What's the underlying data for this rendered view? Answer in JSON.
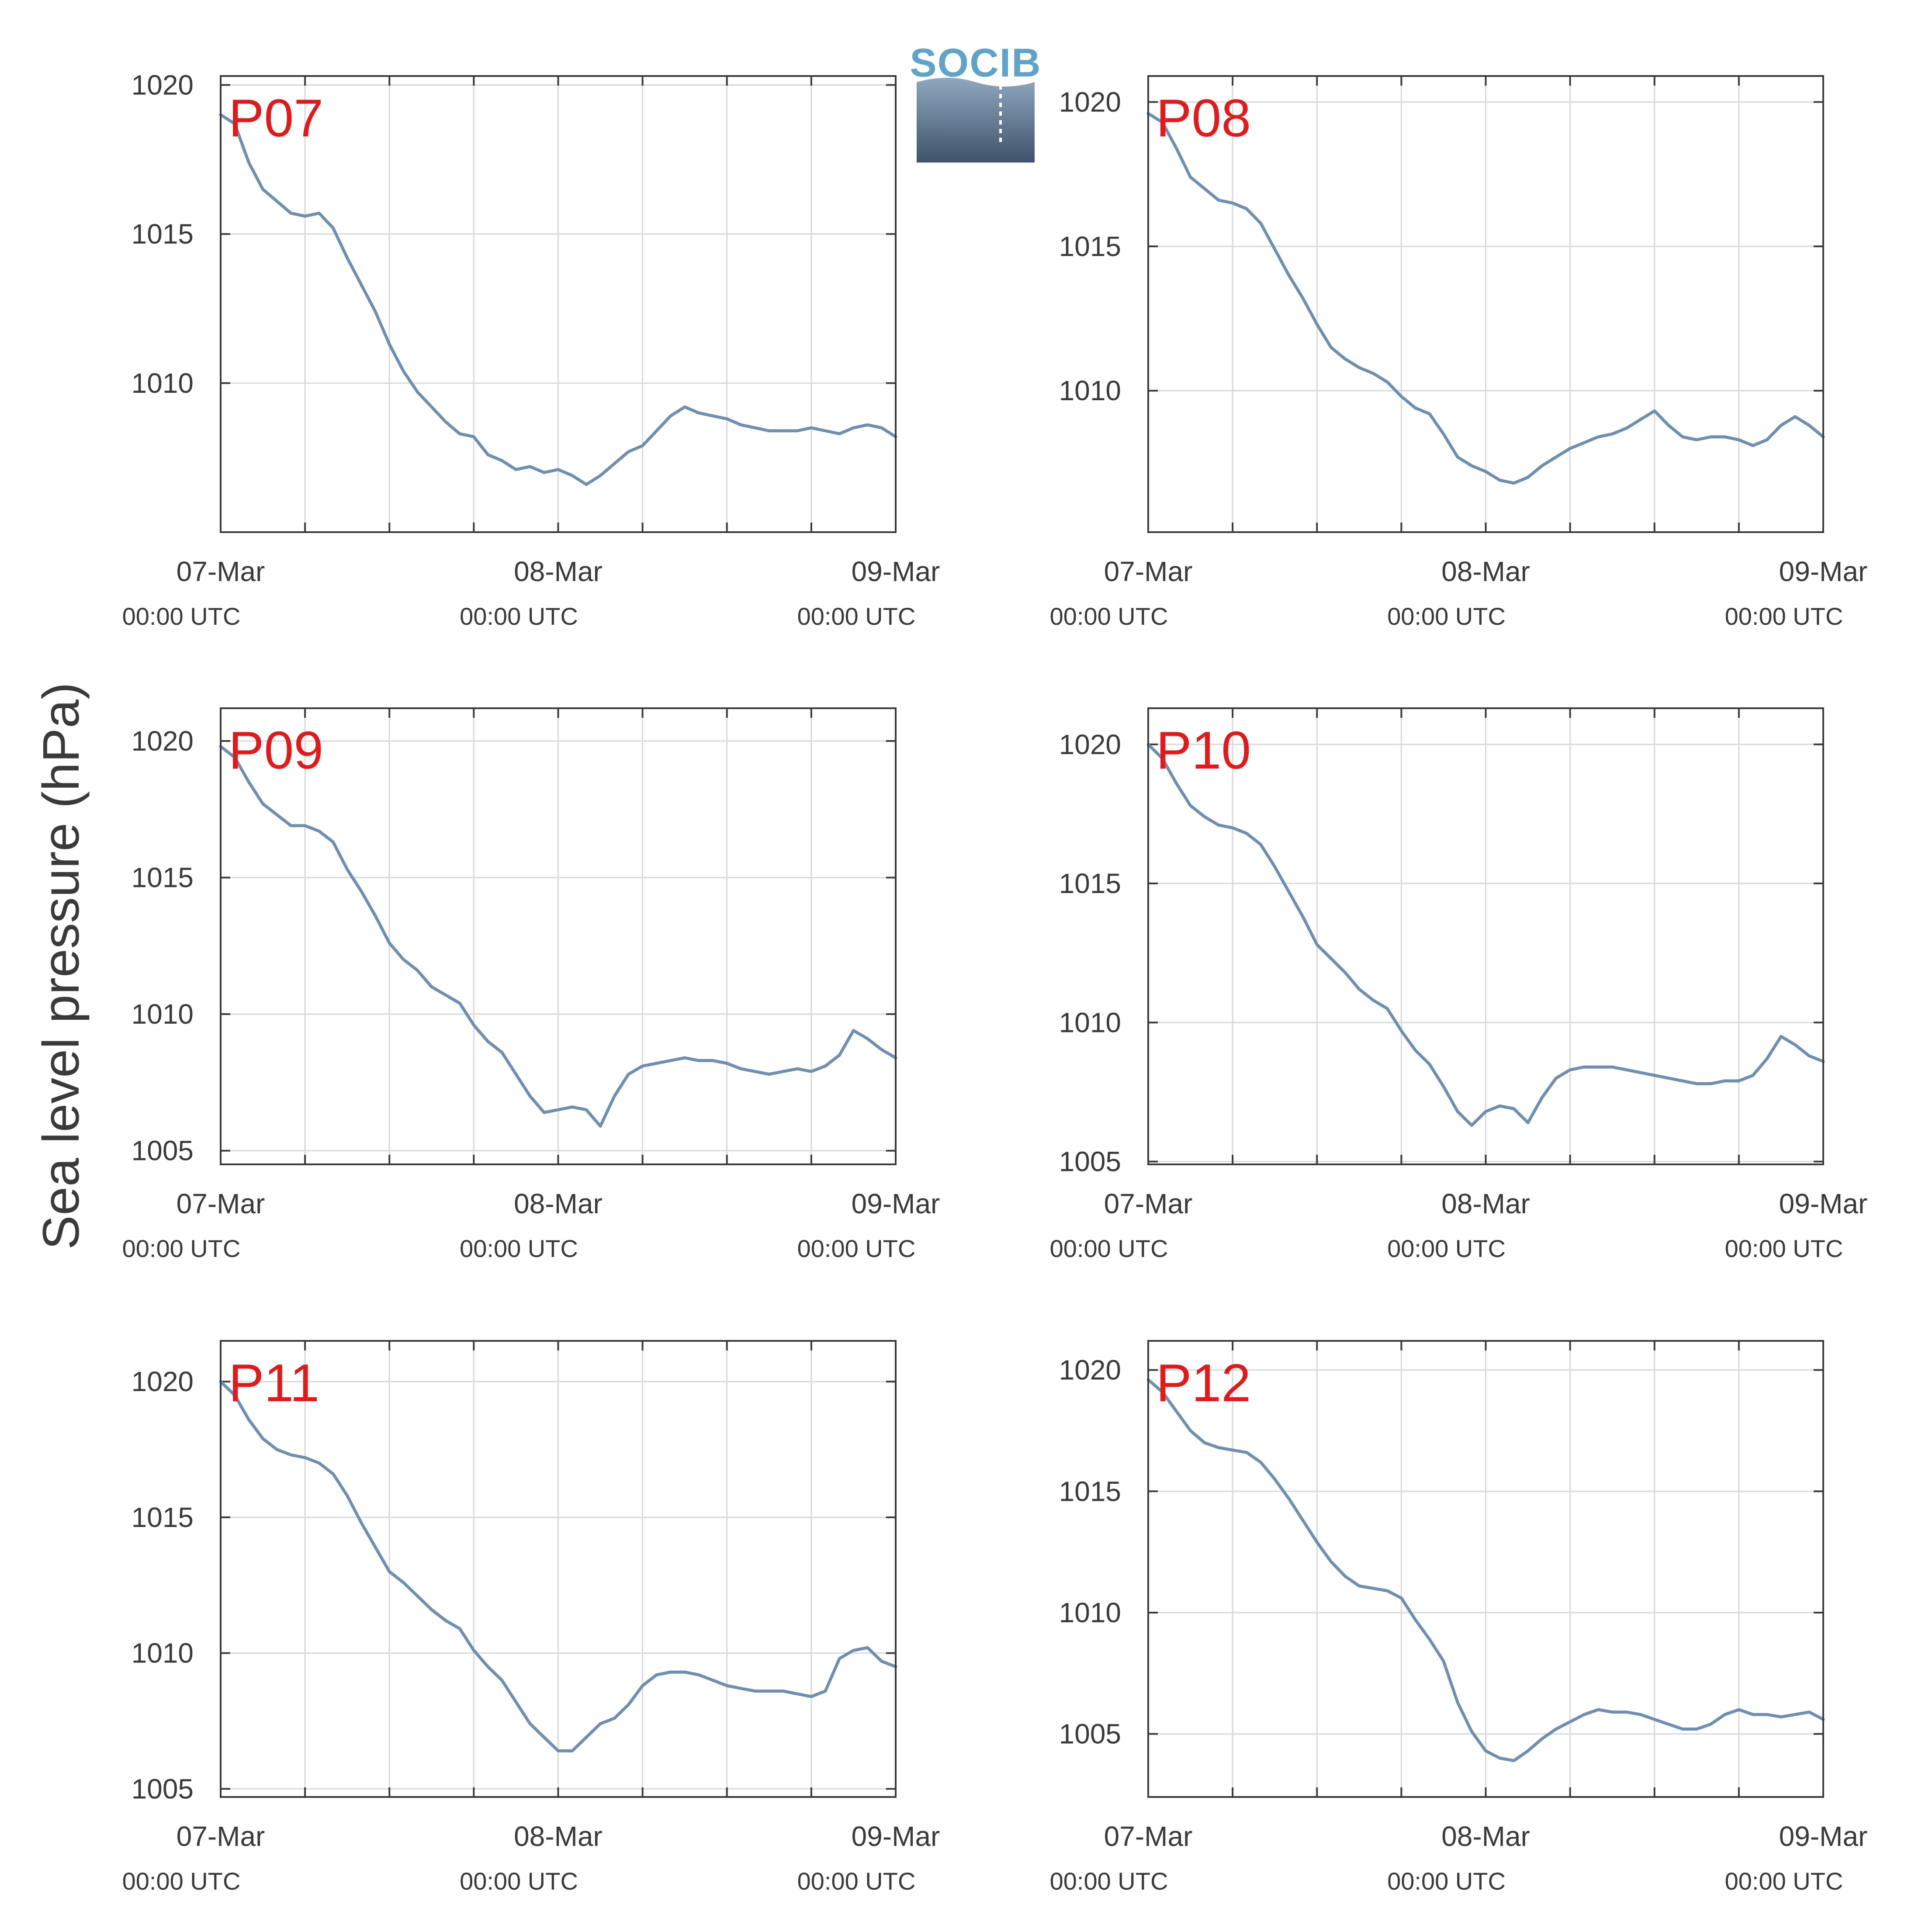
{
  "figure": {
    "ylabel": "Sea level pressure (hPa)",
    "logo_text": "SOCIB"
  },
  "colors": {
    "line": "#6f8fb0",
    "panel_label": "#e31a1c",
    "axis": "#3a3a3a",
    "grid": "#d9d9d9"
  },
  "chart_data": [
    {
      "type": "line",
      "panel_label": "P07",
      "xlabel": "",
      "ylabel": "Sea level pressure (hPa)",
      "grid": true,
      "xlim": [
        0,
        48
      ],
      "ylim": [
        1005,
        1020.3
      ],
      "x_ticks": [
        {
          "label": "07-Mar",
          "sub": "00:00 UTC",
          "x": 0
        },
        {
          "label": "08-Mar",
          "sub": "00:00 UTC",
          "x": 24
        },
        {
          "label": "09-Mar",
          "sub": "00:00 UTC",
          "x": 48
        }
      ],
      "y_ticks": [
        1010,
        1015,
        1020
      ],
      "series": [
        {
          "x": [
            0,
            1,
            2,
            3,
            4,
            5,
            6,
            7,
            8,
            9,
            10,
            11,
            12,
            13,
            14,
            15,
            16,
            17,
            18,
            19,
            20,
            21,
            22,
            23,
            24,
            25,
            26,
            27,
            28,
            29,
            30,
            31,
            32,
            33,
            34,
            35,
            36,
            37,
            38,
            39,
            40,
            41,
            42,
            43,
            44,
            45,
            46,
            47,
            48
          ],
          "y": [
            1019,
            1018.7,
            1017.4,
            1016.5,
            1016.1,
            1015.7,
            1015.6,
            1015.7,
            1015.2,
            1014.2,
            1013.3,
            1012.4,
            1011.3,
            1010.4,
            1009.7,
            1009.2,
            1008.7,
            1008.3,
            1008.2,
            1007.6,
            1007.4,
            1007.1,
            1007.2,
            1007.0,
            1007.1,
            1006.9,
            1006.6,
            1006.9,
            1007.3,
            1007.7,
            1007.9,
            1008.4,
            1008.9,
            1009.2,
            1009.0,
            1008.9,
            1008.8,
            1008.6,
            1008.5,
            1008.4,
            1008.4,
            1008.4,
            1008.5,
            1008.4,
            1008.3,
            1008.5,
            1008.6,
            1008.5,
            1008.2
          ]
        }
      ]
    },
    {
      "type": "line",
      "panel_label": "P08",
      "xlabel": "",
      "ylabel": "Sea level pressure (hPa)",
      "grid": true,
      "xlim": [
        0,
        48
      ],
      "ylim": [
        1005.1,
        1020.9
      ],
      "x_ticks": [
        {
          "label": "07-Mar",
          "sub": "00:00 UTC",
          "x": 0
        },
        {
          "label": "08-Mar",
          "sub": "00:00 UTC",
          "x": 24
        },
        {
          "label": "09-Mar",
          "sub": "00:00 UTC",
          "x": 48
        }
      ],
      "y_ticks": [
        1010,
        1015,
        1020
      ],
      "series": [
        {
          "x": [
            0,
            1,
            2,
            3,
            4,
            5,
            6,
            7,
            8,
            9,
            10,
            11,
            12,
            13,
            14,
            15,
            16,
            17,
            18,
            19,
            20,
            21,
            22,
            23,
            24,
            25,
            26,
            27,
            28,
            29,
            30,
            31,
            32,
            33,
            34,
            35,
            36,
            37,
            38,
            39,
            40,
            41,
            42,
            43,
            44,
            45,
            46,
            47,
            48
          ],
          "y": [
            1019.6,
            1019.3,
            1018.4,
            1017.4,
            1017.0,
            1016.6,
            1016.5,
            1016.3,
            1015.8,
            1014.9,
            1014.0,
            1013.2,
            1012.3,
            1011.5,
            1011.1,
            1010.8,
            1010.6,
            1010.3,
            1009.8,
            1009.4,
            1009.2,
            1008.5,
            1007.7,
            1007.4,
            1007.2,
            1006.9,
            1006.8,
            1007.0,
            1007.4,
            1007.7,
            1008.0,
            1008.2,
            1008.4,
            1008.5,
            1008.7,
            1009.0,
            1009.3,
            1008.8,
            1008.4,
            1008.3,
            1008.4,
            1008.4,
            1008.3,
            1008.1,
            1008.3,
            1008.8,
            1009.1,
            1008.8,
            1008.4
          ]
        }
      ]
    },
    {
      "type": "line",
      "panel_label": "P09",
      "xlabel": "",
      "ylabel": "Sea level pressure (hPa)",
      "grid": true,
      "xlim": [
        0,
        48
      ],
      "ylim": [
        1004.5,
        1021.2
      ],
      "x_ticks": [
        {
          "label": "07-Mar",
          "sub": "00:00 UTC",
          "x": 0
        },
        {
          "label": "08-Mar",
          "sub": "00:00 UTC",
          "x": 24
        },
        {
          "label": "09-Mar",
          "sub": "00:00 UTC",
          "x": 48
        }
      ],
      "y_ticks": [
        1005,
        1010,
        1015,
        1020
      ],
      "series": [
        {
          "x": [
            0,
            1,
            2,
            3,
            4,
            5,
            6,
            7,
            8,
            9,
            10,
            11,
            12,
            13,
            14,
            15,
            16,
            17,
            18,
            19,
            20,
            21,
            22,
            23,
            24,
            25,
            26,
            27,
            28,
            29,
            30,
            31,
            32,
            33,
            34,
            35,
            36,
            37,
            38,
            39,
            40,
            41,
            42,
            43,
            44,
            45,
            46,
            47,
            48
          ],
          "y": [
            1019.8,
            1019.4,
            1018.5,
            1017.7,
            1017.3,
            1016.9,
            1016.9,
            1016.7,
            1016.3,
            1015.3,
            1014.5,
            1013.6,
            1012.6,
            1012.0,
            1011.6,
            1011.0,
            1010.7,
            1010.4,
            1009.6,
            1009.0,
            1008.6,
            1007.8,
            1007.0,
            1006.4,
            1006.5,
            1006.6,
            1006.5,
            1005.9,
            1007.0,
            1007.8,
            1008.1,
            1008.2,
            1008.3,
            1008.4,
            1008.3,
            1008.3,
            1008.2,
            1008.0,
            1007.9,
            1007.8,
            1007.9,
            1008.0,
            1007.9,
            1008.1,
            1008.5,
            1009.4,
            1009.1,
            1008.7,
            1008.4
          ]
        }
      ]
    },
    {
      "type": "line",
      "panel_label": "P10",
      "xlabel": "",
      "ylabel": "Sea level pressure (hPa)",
      "grid": true,
      "xlim": [
        0,
        48
      ],
      "ylim": [
        1004.9,
        1021.3
      ],
      "x_ticks": [
        {
          "label": "07-Mar",
          "sub": "00:00 UTC",
          "x": 0
        },
        {
          "label": "08-Mar",
          "sub": "00:00 UTC",
          "x": 24
        },
        {
          "label": "09-Mar",
          "sub": "00:00 UTC",
          "x": 48
        }
      ],
      "y_ticks": [
        1005,
        1010,
        1015,
        1020
      ],
      "series": [
        {
          "x": [
            0,
            1,
            2,
            3,
            4,
            5,
            6,
            7,
            8,
            9,
            10,
            11,
            12,
            13,
            14,
            15,
            16,
            17,
            18,
            19,
            20,
            21,
            22,
            23,
            24,
            25,
            26,
            27,
            28,
            29,
            30,
            31,
            32,
            33,
            34,
            35,
            36,
            37,
            38,
            39,
            40,
            41,
            42,
            43,
            44,
            45,
            46,
            47,
            48
          ],
          "y": [
            1020.0,
            1019.5,
            1018.6,
            1017.8,
            1017.4,
            1017.1,
            1017.0,
            1016.8,
            1016.4,
            1015.6,
            1014.7,
            1013.8,
            1012.8,
            1012.3,
            1011.8,
            1011.2,
            1010.8,
            1010.5,
            1009.7,
            1009.0,
            1008.5,
            1007.7,
            1006.8,
            1006.3,
            1006.8,
            1007.0,
            1006.9,
            1006.4,
            1007.3,
            1008.0,
            1008.3,
            1008.4,
            1008.4,
            1008.4,
            1008.3,
            1008.2,
            1008.1,
            1008.0,
            1007.9,
            1007.8,
            1007.8,
            1007.9,
            1007.9,
            1008.1,
            1008.7,
            1009.5,
            1009.2,
            1008.8,
            1008.6
          ]
        }
      ]
    },
    {
      "type": "line",
      "panel_label": "P11",
      "xlabel": "",
      "ylabel": "Sea level pressure (hPa)",
      "grid": true,
      "xlim": [
        0,
        48
      ],
      "ylim": [
        1004.7,
        1021.5
      ],
      "x_ticks": [
        {
          "label": "07-Mar",
          "sub": "00:00 UTC",
          "x": 0
        },
        {
          "label": "08-Mar",
          "sub": "00:00 UTC",
          "x": 24
        },
        {
          "label": "09-Mar",
          "sub": "00:00 UTC",
          "x": 48
        }
      ],
      "y_ticks": [
        1005,
        1010,
        1015,
        1020
      ],
      "series": [
        {
          "x": [
            0,
            1,
            2,
            3,
            4,
            5,
            6,
            7,
            8,
            9,
            10,
            11,
            12,
            13,
            14,
            15,
            16,
            17,
            18,
            19,
            20,
            21,
            22,
            23,
            24,
            25,
            26,
            27,
            28,
            29,
            30,
            31,
            32,
            33,
            34,
            35,
            36,
            37,
            38,
            39,
            40,
            41,
            42,
            43,
            44,
            45,
            46,
            47,
            48
          ],
          "y": [
            1020.0,
            1019.5,
            1018.6,
            1017.9,
            1017.5,
            1017.3,
            1017.2,
            1017.0,
            1016.6,
            1015.8,
            1014.8,
            1013.9,
            1013.0,
            1012.6,
            1012.1,
            1011.6,
            1011.2,
            1010.9,
            1010.1,
            1009.5,
            1009.0,
            1008.2,
            1007.4,
            1006.9,
            1006.4,
            1006.4,
            1006.9,
            1007.4,
            1007.6,
            1008.1,
            1008.8,
            1009.2,
            1009.3,
            1009.3,
            1009.2,
            1009.0,
            1008.8,
            1008.7,
            1008.6,
            1008.6,
            1008.6,
            1008.5,
            1008.4,
            1008.6,
            1009.8,
            1010.1,
            1010.2,
            1009.7,
            1009.5
          ]
        }
      ]
    },
    {
      "type": "line",
      "panel_label": "P12",
      "xlabel": "",
      "ylabel": "Sea level pressure (hPa)",
      "grid": true,
      "xlim": [
        0,
        48
      ],
      "ylim": [
        1002.4,
        1021.2
      ],
      "x_ticks": [
        {
          "label": "07-Mar",
          "sub": "00:00 UTC",
          "x": 0
        },
        {
          "label": "08-Mar",
          "sub": "00:00 UTC",
          "x": 24
        },
        {
          "label": "09-Mar",
          "sub": "00:00 UTC",
          "x": 48
        }
      ],
      "y_ticks": [
        1005,
        1010,
        1015,
        1020
      ],
      "series": [
        {
          "x": [
            0,
            1,
            2,
            3,
            4,
            5,
            6,
            7,
            8,
            9,
            10,
            11,
            12,
            13,
            14,
            15,
            16,
            17,
            18,
            19,
            20,
            21,
            22,
            23,
            24,
            25,
            26,
            27,
            28,
            29,
            30,
            31,
            32,
            33,
            34,
            35,
            36,
            37,
            38,
            39,
            40,
            41,
            42,
            43,
            44,
            45,
            46,
            47,
            48
          ],
          "y": [
            1019.6,
            1019.1,
            1018.3,
            1017.5,
            1017.0,
            1016.8,
            1016.7,
            1016.6,
            1016.2,
            1015.5,
            1014.7,
            1013.8,
            1012.9,
            1012.1,
            1011.5,
            1011.1,
            1011.0,
            1010.9,
            1010.6,
            1009.7,
            1008.9,
            1008.0,
            1006.3,
            1005.1,
            1004.3,
            1004.0,
            1003.9,
            1004.3,
            1004.8,
            1005.2,
            1005.5,
            1005.8,
            1006.0,
            1005.9,
            1005.9,
            1005.8,
            1005.6,
            1005.4,
            1005.2,
            1005.2,
            1005.4,
            1005.8,
            1006.0,
            1005.8,
            1005.8,
            1005.7,
            1005.8,
            1005.9,
            1005.6
          ]
        }
      ]
    }
  ]
}
